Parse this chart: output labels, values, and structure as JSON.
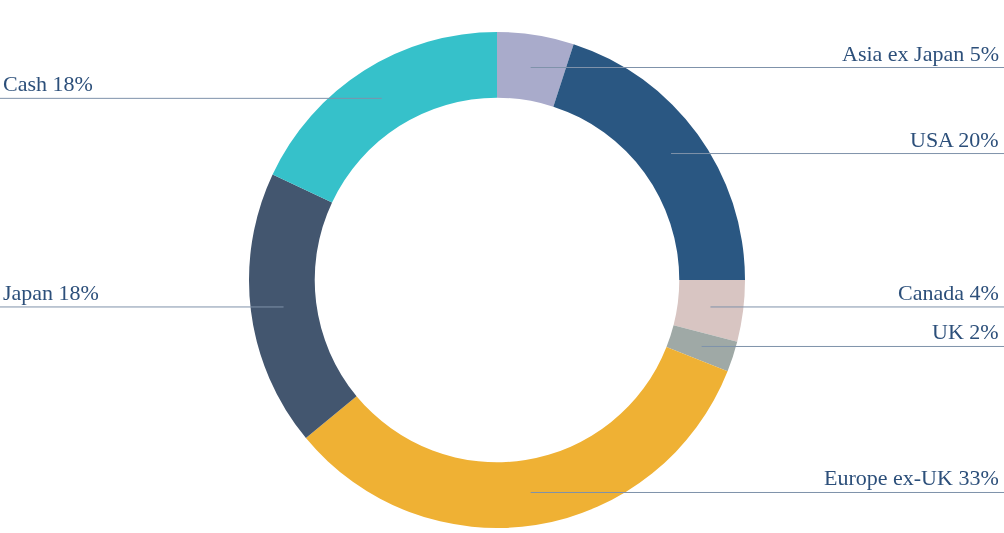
{
  "chart_data": {
    "type": "donut",
    "categories": [
      "Asia ex Japan",
      "USA",
      "Canada",
      "UK",
      "Europe ex-UK",
      "Japan",
      "Cash"
    ],
    "values": [
      5,
      20,
      4,
      2,
      33,
      18,
      18
    ],
    "value_labels": [
      "5%",
      "20%",
      "4%",
      "2%",
      "33%",
      "18%",
      "18%"
    ],
    "colors": [
      "#a9abcb",
      "#2a5782",
      "#d8c5c2",
      "#9fa9a6",
      "#efb134",
      "#43566f",
      "#36c1ca"
    ]
  }
}
